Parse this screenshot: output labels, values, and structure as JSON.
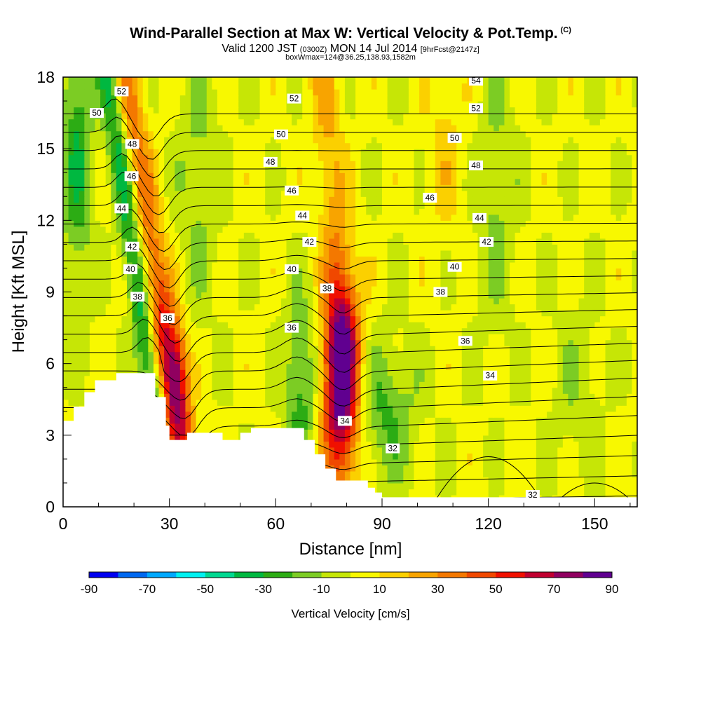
{
  "title": {
    "main": "Wind-Parallel Section at Max W: Vertical Velocity & Pot.Temp.",
    "mark": "(C)",
    "line2_a": "Valid 1200 JST",
    "line2_b": "(0300Z)",
    "line2_c": "MON 14 Jul 2014",
    "line2_d": "[9hrFcst@2147z]",
    "line3": "boxWmax=124@36.25,138.93,1582m"
  },
  "colors": {
    "palette": [
      "#0000f0",
      "#0068f0",
      "#00a8ff",
      "#00f0f0",
      "#00d890",
      "#00b840",
      "#2cac14",
      "#7ccc24",
      "#c6e606",
      "#f8f800",
      "#fbd000",
      "#f8a400",
      "#f47800",
      "#f04800",
      "#f01000",
      "#c00030",
      "#900060",
      "#600090"
    ],
    "terrain": "#ffffff",
    "contour": "#000000"
  },
  "chart_data": {
    "type": "heatmap",
    "title": "Wind-Parallel Section at Max W: Vertical Velocity & Pot.Temp.",
    "xlabel": "Distance [nm]",
    "ylabel": "Height [Kft MSL]",
    "xlim": [
      0,
      162
    ],
    "ylim": [
      0,
      18
    ],
    "x_ticks": [
      0,
      30,
      60,
      90,
      120,
      150
    ],
    "y_ticks": [
      0,
      3,
      6,
      9,
      12,
      15,
      18
    ],
    "colorbar": {
      "label": "Vertical Velocity [cm/s]",
      "levels": [
        -90,
        -80,
        -70,
        -60,
        -50,
        -40,
        -30,
        -20,
        -10,
        0,
        10,
        20,
        30,
        40,
        50,
        60,
        70,
        80,
        90
      ],
      "tick_labels": [
        -90,
        -70,
        -50,
        -30,
        -10,
        10,
        30,
        50,
        70,
        90
      ]
    },
    "updraft_cores": [
      {
        "x": 32,
        "y": 5.6,
        "w_cm_s": 90
      },
      {
        "x": 78,
        "y": 4.9,
        "w_cm_s": 90
      },
      {
        "x": 23,
        "y": 17.0,
        "w_cm_s": 60
      }
    ],
    "theta_contours_C": [
      32,
      33,
      34,
      35,
      36,
      37,
      38,
      39,
      40,
      41,
      42,
      43,
      44,
      45,
      46,
      47,
      48,
      49,
      50,
      51,
      52,
      53,
      54
    ],
    "contour_labels": [
      {
        "text": "52",
        "x": 16.5,
        "y": 17.4
      },
      {
        "text": "50",
        "x": 9.5,
        "y": 16.5
      },
      {
        "text": "48",
        "x": 19.5,
        "y": 15.2
      },
      {
        "text": "46",
        "x": 19.3,
        "y": 13.85
      },
      {
        "text": "44",
        "x": 16.5,
        "y": 12.5
      },
      {
        "text": "42",
        "x": 19.5,
        "y": 10.9
      },
      {
        "text": "40",
        "x": 19.0,
        "y": 9.95
      },
      {
        "text": "38",
        "x": 21.0,
        "y": 8.8
      },
      {
        "text": "36",
        "x": 29.5,
        "y": 7.9
      },
      {
        "text": "52",
        "x": 65.2,
        "y": 17.1
      },
      {
        "text": "50",
        "x": 61.5,
        "y": 15.6
      },
      {
        "text": "48",
        "x": 58.5,
        "y": 14.45
      },
      {
        "text": "46",
        "x": 64.5,
        "y": 13.25
      },
      {
        "text": "44",
        "x": 67.5,
        "y": 12.2
      },
      {
        "text": "42",
        "x": 69.5,
        "y": 11.1
      },
      {
        "text": "40",
        "x": 64.5,
        "y": 9.95
      },
      {
        "text": "38",
        "x": 74.5,
        "y": 9.15
      },
      {
        "text": "36",
        "x": 64.5,
        "y": 7.5
      },
      {
        "text": "34",
        "x": 79.5,
        "y": 3.6
      },
      {
        "text": "32",
        "x": 93.0,
        "y": 2.45
      },
      {
        "text": "54",
        "x": 116.5,
        "y": 17.85
      },
      {
        "text": "52",
        "x": 116.5,
        "y": 16.7
      },
      {
        "text": "50",
        "x": 110.5,
        "y": 15.45
      },
      {
        "text": "48",
        "x": 116.5,
        "y": 14.3
      },
      {
        "text": "46",
        "x": 103.5,
        "y": 12.95
      },
      {
        "text": "44",
        "x": 117.5,
        "y": 12.1
      },
      {
        "text": "42",
        "x": 119.5,
        "y": 11.1
      },
      {
        "text": "40",
        "x": 110.5,
        "y": 10.05
      },
      {
        "text": "38",
        "x": 106.5,
        "y": 9.0
      },
      {
        "text": "36",
        "x": 113.5,
        "y": 6.95
      },
      {
        "text": "34",
        "x": 120.5,
        "y": 5.5
      },
      {
        "text": "32",
        "x": 132.5,
        "y": 0.5
      }
    ]
  }
}
